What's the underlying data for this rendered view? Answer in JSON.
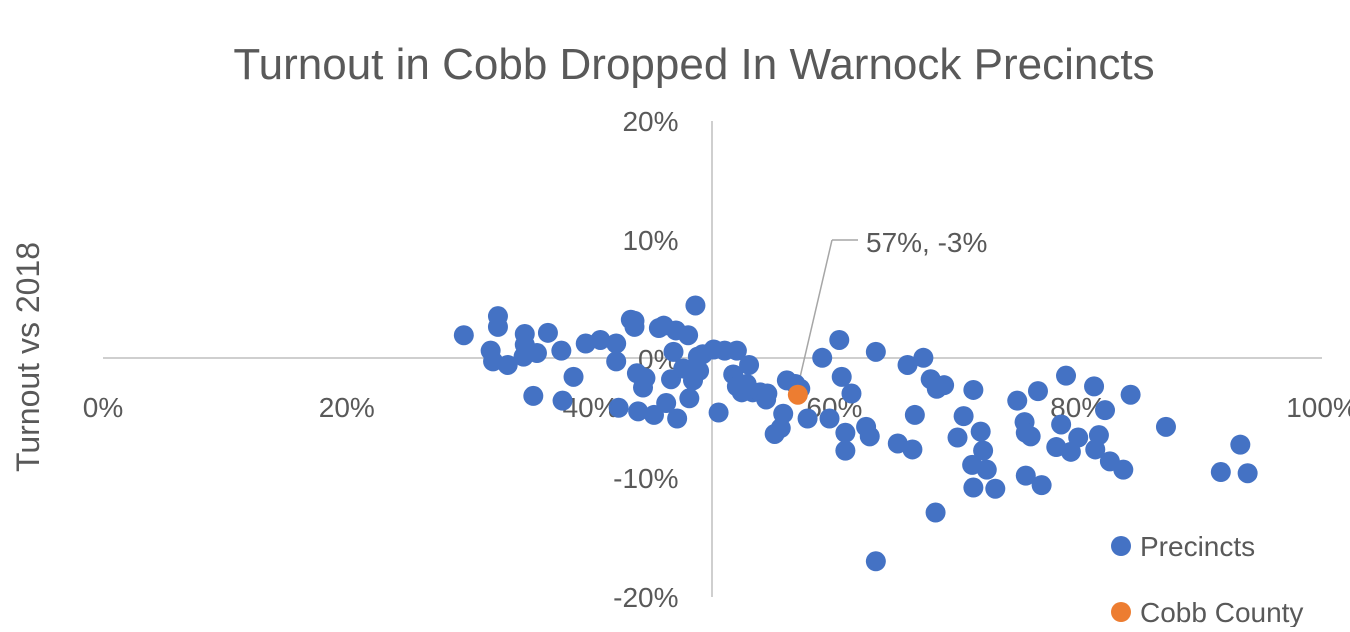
{
  "chart_data": {
    "type": "scatter",
    "title": "Turnout in Cobb Dropped In Warnock Precincts",
    "xlabel": "",
    "ylabel": "Turnout vs 2018",
    "xlim": [
      0,
      1.0
    ],
    "ylim": [
      -0.2,
      0.2
    ],
    "x_ticks": [
      "0%",
      "20%",
      "40%",
      "60%",
      "80%",
      "100%"
    ],
    "y_ticks": [
      "20%",
      "10%",
      "0%",
      "-10%",
      "-20%"
    ],
    "grid": false,
    "legend_position": "bottom-right",
    "annotation": "57%, -3%",
    "series": [
      {
        "name": "Precincts",
        "color": "#4472C4",
        "points": [
          [
            0.296,
            0.02
          ],
          [
            0.318,
            0.007
          ],
          [
            0.32,
            -0.002
          ],
          [
            0.324,
            0.036
          ],
          [
            0.324,
            0.027
          ],
          [
            0.332,
            -0.005
          ],
          [
            0.346,
            0.021
          ],
          [
            0.345,
            0.002
          ],
          [
            0.346,
            0.012
          ],
          [
            0.356,
            0.005
          ],
          [
            0.353,
            -0.031
          ],
          [
            0.365,
            0.022
          ],
          [
            0.376,
            0.007
          ],
          [
            0.377,
            -0.035
          ],
          [
            0.386,
            -0.015
          ],
          [
            0.396,
            0.013
          ],
          [
            0.408,
            0.016
          ],
          [
            0.421,
            0.013
          ],
          [
            0.421,
            -0.002
          ],
          [
            0.423,
            -0.041
          ],
          [
            0.433,
            0.033
          ],
          [
            0.436,
            0.032
          ],
          [
            0.436,
            0.027
          ],
          [
            0.438,
            -0.012
          ],
          [
            0.439,
            -0.044
          ],
          [
            0.443,
            -0.024
          ],
          [
            0.445,
            -0.016
          ],
          [
            0.452,
            -0.047
          ],
          [
            0.456,
            0.026
          ],
          [
            0.46,
            0.028
          ],
          [
            0.462,
            -0.037
          ],
          [
            0.466,
            -0.017
          ],
          [
            0.468,
            0.006
          ],
          [
            0.47,
            0.024
          ],
          [
            0.471,
            -0.05
          ],
          [
            0.476,
            -0.008
          ],
          [
            0.48,
            0.02
          ],
          [
            0.481,
            -0.033
          ],
          [
            0.484,
            -0.018
          ],
          [
            0.486,
            0.045
          ],
          [
            0.488,
            0.002
          ],
          [
            0.489,
            -0.01
          ],
          [
            0.492,
            0.004
          ],
          [
            0.501,
            0.008
          ],
          [
            0.505,
            -0.045
          ],
          [
            0.51,
            0.007
          ],
          [
            0.517,
            -0.013
          ],
          [
            0.52,
            -0.023
          ],
          [
            0.52,
            0.007
          ],
          [
            0.524,
            -0.028
          ],
          [
            0.528,
            -0.021
          ],
          [
            0.53,
            -0.005
          ],
          [
            0.533,
            -0.028
          ],
          [
            0.539,
            -0.028
          ],
          [
            0.544,
            -0.034
          ],
          [
            0.545,
            -0.029
          ],
          [
            0.551,
            -0.063
          ],
          [
            0.556,
            -0.058
          ],
          [
            0.558,
            -0.046
          ],
          [
            0.561,
            -0.018
          ],
          [
            0.568,
            -0.021
          ],
          [
            0.572,
            -0.025
          ],
          [
            0.578,
            -0.05
          ],
          [
            0.59,
            0.001
          ],
          [
            0.596,
            -0.05
          ],
          [
            0.604,
            0.016
          ],
          [
            0.606,
            -0.015
          ],
          [
            0.609,
            -0.062
          ],
          [
            0.609,
            -0.077
          ],
          [
            0.614,
            -0.029
          ],
          [
            0.626,
            -0.057
          ],
          [
            0.629,
            -0.065
          ],
          [
            0.634,
            0.006
          ],
          [
            0.634,
            -0.17
          ],
          [
            0.652,
            -0.071
          ],
          [
            0.66,
            -0.005
          ],
          [
            0.664,
            -0.076
          ],
          [
            0.666,
            -0.047
          ],
          [
            0.673,
            0.001
          ],
          [
            0.679,
            -0.017
          ],
          [
            0.683,
            -0.129
          ],
          [
            0.684,
            -0.025
          ],
          [
            0.69,
            -0.022
          ],
          [
            0.701,
            -0.066
          ],
          [
            0.706,
            -0.048
          ],
          [
            0.713,
            -0.089
          ],
          [
            0.714,
            -0.026
          ],
          [
            0.714,
            -0.108
          ],
          [
            0.72,
            -0.061
          ],
          [
            0.722,
            -0.077
          ],
          [
            0.725,
            -0.093
          ],
          [
            0.732,
            -0.109
          ],
          [
            0.75,
            -0.035
          ],
          [
            0.756,
            -0.053
          ],
          [
            0.757,
            -0.062
          ],
          [
            0.757,
            -0.098
          ],
          [
            0.761,
            -0.065
          ],
          [
            0.767,
            -0.027
          ],
          [
            0.77,
            -0.106
          ],
          [
            0.782,
            -0.074
          ],
          [
            0.786,
            -0.055
          ],
          [
            0.79,
            -0.014
          ],
          [
            0.794,
            -0.078
          ],
          [
            0.8,
            -0.066
          ],
          [
            0.813,
            -0.023
          ],
          [
            0.814,
            -0.076
          ],
          [
            0.817,
            -0.064
          ],
          [
            0.822,
            -0.043
          ],
          [
            0.826,
            -0.086
          ],
          [
            0.837,
            -0.093
          ],
          [
            0.843,
            -0.03
          ],
          [
            0.872,
            -0.057
          ],
          [
            0.917,
            -0.095
          ],
          [
            0.933,
            -0.072
          ],
          [
            0.939,
            -0.096
          ]
        ]
      },
      {
        "name": "Cobb County",
        "color": "#ED7D31",
        "points": [
          [
            0.57,
            -0.03
          ]
        ]
      }
    ]
  }
}
